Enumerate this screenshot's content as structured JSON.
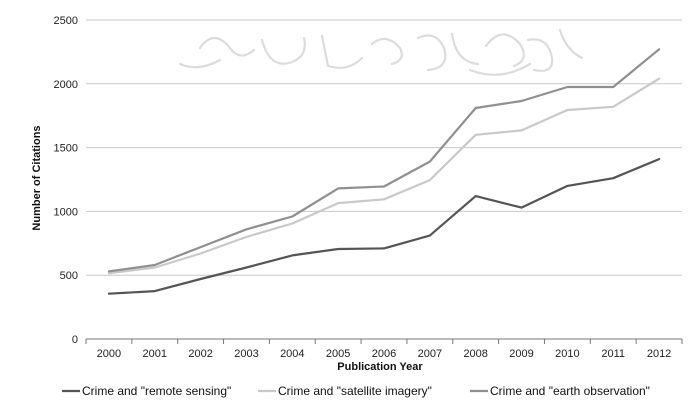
{
  "chart_data": {
    "type": "line",
    "title": "",
    "xlabel": "Publication Year",
    "ylabel": "Number of Citations",
    "ylim": [
      0,
      2500
    ],
    "yticks": [
      0,
      500,
      1000,
      1500,
      2000,
      2500
    ],
    "categories": [
      "2000",
      "2001",
      "2002",
      "2003",
      "2004",
      "2005",
      "2006",
      "2007",
      "2008",
      "2009",
      "2010",
      "2011",
      "2012"
    ],
    "grid": "horizontal",
    "legend_position": "bottom",
    "series": [
      {
        "name": "Crime and \"remote sensing\"",
        "color": "#555555",
        "values": [
          355,
          375,
          470,
          560,
          655,
          705,
          710,
          810,
          1120,
          1030,
          1200,
          1260,
          1410
        ]
      },
      {
        "name": "Crime and \"satellite imagery\"",
        "color": "#c9c9c9",
        "values": [
          515,
          560,
          670,
          800,
          905,
          1065,
          1095,
          1245,
          1600,
          1635,
          1795,
          1820,
          2040
        ]
      },
      {
        "name": "Crime and \"earth observation\"",
        "color": "#909090",
        "values": [
          530,
          580,
          720,
          860,
          960,
          1180,
          1195,
          1390,
          1810,
          1865,
          1975,
          1975,
          2270
        ]
      }
    ]
  }
}
